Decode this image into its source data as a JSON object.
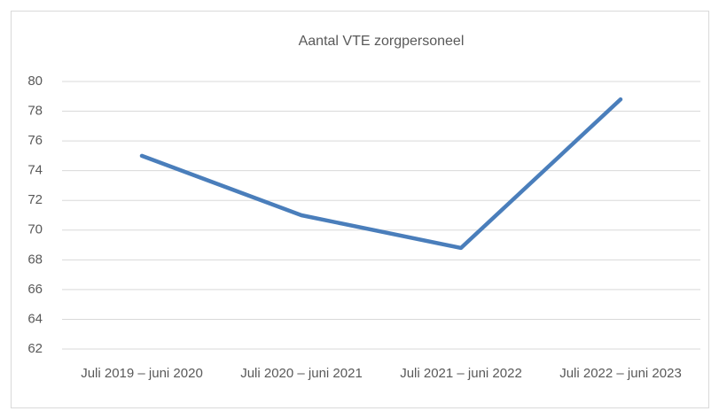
{
  "chart_data": {
    "type": "line",
    "title": "Aantal VTE zorgpersoneel",
    "categories": [
      "Juli 2019 – juni 2020",
      "Juli 2020 – juni 2021",
      "Juli 2021 – juni 2022",
      "Juli 2022 – juni 2023"
    ],
    "series": [
      {
        "name": "Aantal VTE zorgpersoneel",
        "color": "#4a7ebb",
        "values": [
          75,
          71,
          68.8,
          78.8
        ]
      }
    ],
    "ylim": [
      62,
      80
    ],
    "yticks": [
      62,
      64,
      66,
      68,
      70,
      72,
      74,
      76,
      78,
      80
    ],
    "grid": true
  }
}
